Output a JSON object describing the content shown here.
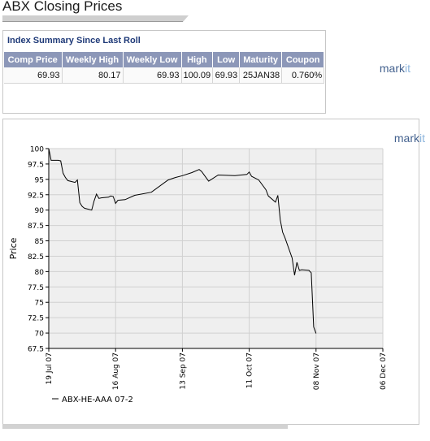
{
  "page": {
    "title": "ABX Closing Prices",
    "summary_heading": "Index Summary Since Last Roll",
    "logo_main": "mark",
    "logo_accent": "it"
  },
  "summary": {
    "columns": [
      "Comp Price",
      "Weekly High",
      "Weekly Low",
      "High",
      "Low",
      "Maturity",
      "Coupon"
    ],
    "row": [
      "69.93",
      "80.17",
      "69.93",
      "100.09",
      "69.93",
      "25JAN38",
      "0.760%"
    ]
  },
  "colors": {
    "header_bg": "#8c97b8",
    "heading_text": "#1f3a78",
    "plot_bg": "#efefef",
    "line": "#000000"
  },
  "chart_data": {
    "type": "line",
    "title": "",
    "xlabel": "",
    "ylabel": "Price",
    "ylim": [
      67.5,
      100
    ],
    "yticks": [
      67.5,
      70,
      72.5,
      75,
      77.5,
      80,
      82.5,
      85,
      87.5,
      90,
      92.5,
      95,
      97.5,
      100
    ],
    "ytick_labels": [
      "67.5",
      "70",
      "72.5",
      "75",
      "77.5",
      "80",
      "82.5",
      "85",
      "87.5",
      "90",
      "92.5",
      "95",
      "97.5",
      "100"
    ],
    "xlim": [
      "2007-07-19",
      "2007-12-06"
    ],
    "xticks": [
      "2007-07-19",
      "2007-08-16",
      "2007-09-13",
      "2007-10-11",
      "2007-11-08",
      "2007-12-06"
    ],
    "xtick_labels": [
      "19 Jul 07",
      "16 Aug 07",
      "13 Sep 07",
      "11 Oct 07",
      "08 Nov 07",
      "06 Dec 07"
    ],
    "grid": true,
    "legend_position": "bottom-left",
    "series": [
      {
        "name": "ABX-HE-AAA 07-2",
        "x": [
          "2007-07-19",
          "2007-07-20",
          "2007-07-23",
          "2007-07-24",
          "2007-07-25",
          "2007-07-26",
          "2007-07-27",
          "2007-07-30",
          "2007-07-31",
          "2007-08-01",
          "2007-08-02",
          "2007-08-03",
          "2007-08-06",
          "2007-08-07",
          "2007-08-08",
          "2007-08-09",
          "2007-08-10",
          "2007-08-13",
          "2007-08-14",
          "2007-08-15",
          "2007-08-16",
          "2007-08-17",
          "2007-08-20",
          "2007-08-24",
          "2007-08-31",
          "2007-09-07",
          "2007-09-10",
          "2007-09-13",
          "2007-09-17",
          "2007-09-20",
          "2007-09-21",
          "2007-09-24",
          "2007-09-28",
          "2007-10-05",
          "2007-10-10",
          "2007-10-11",
          "2007-10-12",
          "2007-10-15",
          "2007-10-18",
          "2007-10-19",
          "2007-10-22",
          "2007-10-23",
          "2007-10-24",
          "2007-10-25",
          "2007-10-26",
          "2007-10-29",
          "2007-10-30",
          "2007-10-31",
          "2007-11-01",
          "2007-11-02",
          "2007-11-05",
          "2007-11-06",
          "2007-11-07",
          "2007-11-08"
        ],
        "y": [
          100.0,
          98.1,
          98.1,
          98.0,
          96.0,
          95.3,
          94.8,
          94.5,
          94.9,
          91.2,
          90.6,
          90.3,
          90.0,
          91.5,
          92.6,
          91.9,
          92.0,
          92.1,
          92.3,
          92.2,
          91.1,
          91.6,
          91.7,
          92.4,
          92.9,
          94.9,
          95.3,
          95.6,
          96.1,
          96.6,
          96.3,
          94.7,
          95.7,
          95.6,
          95.8,
          96.2,
          95.5,
          94.9,
          93.3,
          92.3,
          91.3,
          92.4,
          88.4,
          86.4,
          85.5,
          82.2,
          79.4,
          81.5,
          80.2,
          80.3,
          80.2,
          79.8,
          71.0,
          69.93
        ]
      }
    ]
  }
}
